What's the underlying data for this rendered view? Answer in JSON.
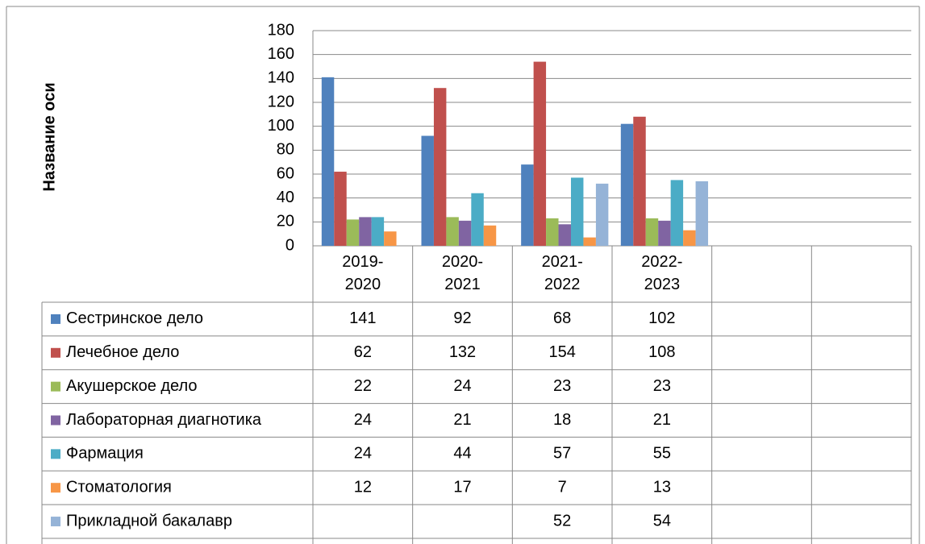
{
  "chart_data": {
    "type": "bar",
    "y_axis_label": "Название оси",
    "categories": [
      "2019-2020",
      "2020-2021",
      "2021-2022",
      "2022-2023",
      null,
      null
    ],
    "series": [
      {
        "name": "Сестринское дело",
        "color": "#4f81bd",
        "values": [
          141,
          92,
          68,
          102,
          null,
          null
        ]
      },
      {
        "name": "Лечебное дело",
        "color": "#c0504d",
        "values": [
          62,
          132,
          154,
          108,
          null,
          null
        ]
      },
      {
        "name": "Акушерское дело",
        "color": "#9bbb59",
        "values": [
          22,
          24,
          23,
          23,
          null,
          null
        ]
      },
      {
        "name": "Лабораторная диагнотика",
        "color": "#8064a2",
        "values": [
          24,
          21,
          18,
          21,
          null,
          null
        ]
      },
      {
        "name": "Фармация",
        "color": "#4bacc6",
        "values": [
          24,
          44,
          57,
          55,
          null,
          null
        ]
      },
      {
        "name": "Стоматология",
        "color": "#f79646",
        "values": [
          12,
          17,
          7,
          13,
          null,
          null
        ]
      },
      {
        "name": "Прикладной бакалавр",
        "color": "#95b3d7",
        "values": [
          null,
          null,
          52,
          54,
          null,
          null
        ]
      }
    ],
    "ylim": [
      0,
      180
    ],
    "yticks": [
      0,
      20,
      40,
      60,
      80,
      100,
      120,
      140,
      160,
      180
    ],
    "grid": true
  }
}
